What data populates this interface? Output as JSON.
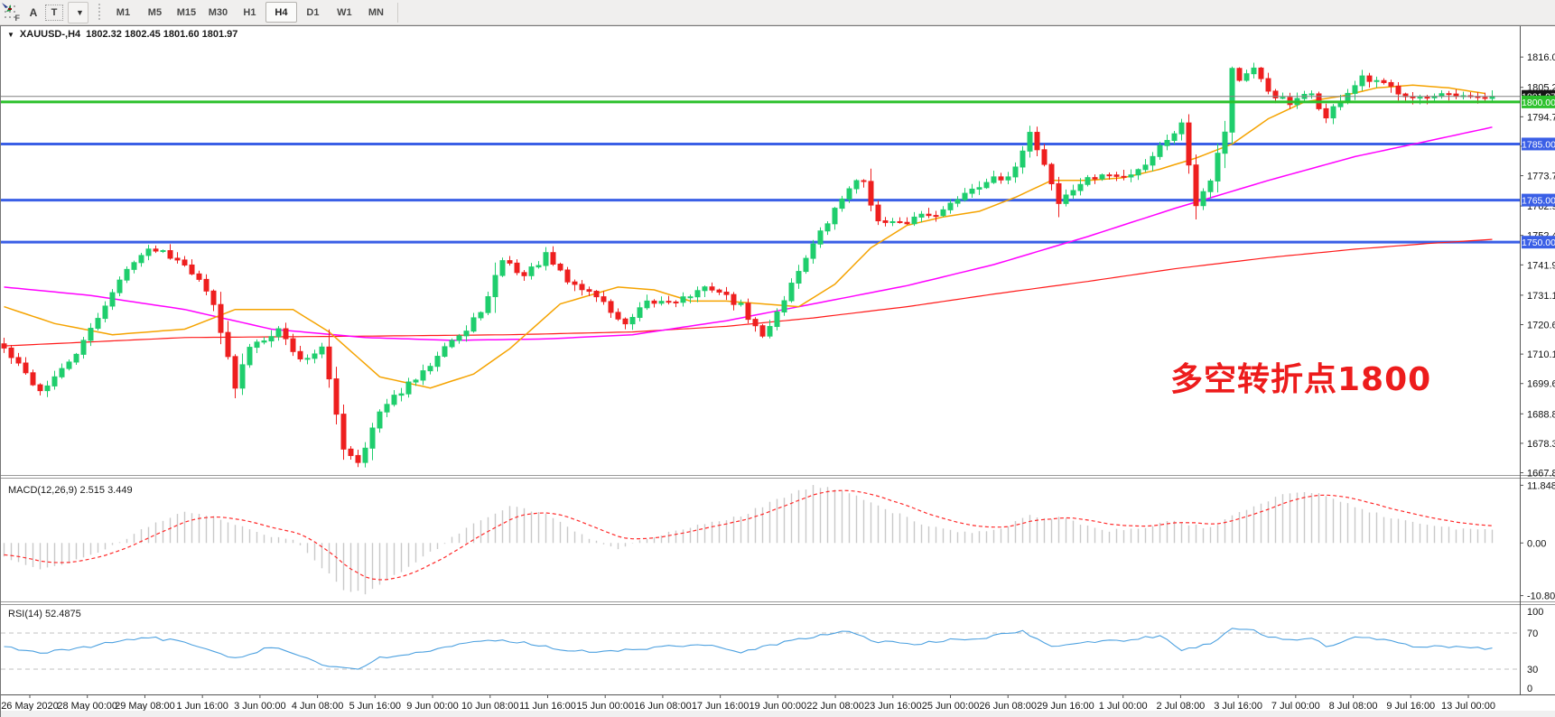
{
  "toolbar": {
    "icon_labels": {
      "f": "F",
      "a": "A",
      "t": "T"
    },
    "timeframes": [
      "M1",
      "M5",
      "M15",
      "M30",
      "H1",
      "H4",
      "D1",
      "W1",
      "MN"
    ],
    "active_timeframe": "H4"
  },
  "chart": {
    "title": {
      "symbol": "XAUUSD-,H4",
      "ohlc": "1802.32 1802.45 1801.60 1801.97"
    },
    "annotation": {
      "text": "多空转折点1800",
      "color": "#ED1C1C"
    },
    "macd": {
      "label": "MACD(12,26,9)",
      "values": "2.515 3.449"
    },
    "rsi": {
      "label": "RSI(14)",
      "value": "52.4875"
    }
  },
  "chart_data": {
    "type": "candlestick",
    "symbol": "XAUUSD",
    "timeframe": "H4",
    "bar_count": 207,
    "ylim": [
      1667.0,
      1827.0
    ],
    "price_axis_ticks": [
      1816.0,
      1805.2,
      1794.7,
      1784.2,
      1773.7,
      1762.9,
      1752.4,
      1741.9,
      1731.1,
      1720.6,
      1710.1,
      1699.6,
      1688.8,
      1678.3,
      1667.8
    ],
    "candle_colors": {
      "bull": "#1FCE6D",
      "bear": "#EE1F1F"
    },
    "close_anchors": [
      [
        0,
        1712
      ],
      [
        3,
        1703
      ],
      [
        5,
        1697
      ],
      [
        8,
        1704
      ],
      [
        11,
        1714
      ],
      [
        14,
        1728
      ],
      [
        18,
        1744
      ],
      [
        21,
        1748
      ],
      [
        25,
        1743
      ],
      [
        29,
        1729
      ],
      [
        32,
        1698
      ],
      [
        34,
        1713
      ],
      [
        38,
        1719
      ],
      [
        41,
        1708
      ],
      [
        44,
        1712
      ],
      [
        47,
        1677
      ],
      [
        49,
        1672
      ],
      [
        52,
        1689
      ],
      [
        55,
        1697
      ],
      [
        58,
        1703
      ],
      [
        61,
        1714
      ],
      [
        64,
        1718
      ],
      [
        67,
        1730
      ],
      [
        69,
        1744
      ],
      [
        72,
        1738
      ],
      [
        75,
        1745
      ],
      [
        78,
        1736
      ],
      [
        82,
        1731
      ],
      [
        86,
        1720
      ],
      [
        89,
        1728
      ],
      [
        94,
        1730
      ],
      [
        98,
        1734
      ],
      [
        102,
        1727
      ],
      [
        105,
        1716
      ],
      [
        108,
        1730
      ],
      [
        111,
        1745
      ],
      [
        114,
        1757
      ],
      [
        117,
        1770
      ],
      [
        119,
        1772
      ],
      [
        121,
        1757
      ],
      [
        124,
        1756
      ],
      [
        127,
        1760
      ],
      [
        130,
        1761
      ],
      [
        133,
        1768
      ],
      [
        136,
        1772
      ],
      [
        139,
        1772
      ],
      [
        142,
        1789
      ],
      [
        144,
        1778
      ],
      [
        146,
        1764
      ],
      [
        149,
        1771
      ],
      [
        152,
        1774
      ],
      [
        155,
        1773
      ],
      [
        158,
        1778
      ],
      [
        161,
        1787
      ],
      [
        163,
        1792
      ],
      [
        165,
        1764
      ],
      [
        167,
        1773
      ],
      [
        169,
        1790
      ],
      [
        170,
        1812
      ],
      [
        171,
        1808
      ],
      [
        173,
        1811
      ],
      [
        175,
        1804
      ],
      [
        178,
        1799
      ],
      [
        181,
        1803
      ],
      [
        183,
        1794
      ],
      [
        185,
        1801
      ],
      [
        188,
        1808
      ],
      [
        191,
        1806
      ],
      [
        194,
        1803
      ],
      [
        197,
        1801
      ],
      [
        200,
        1802
      ],
      [
        203,
        1801
      ],
      [
        206,
        1801.97
      ]
    ],
    "last_ohlc": {
      "open": 1802.32,
      "high": 1802.45,
      "low": 1801.6,
      "close": 1801.97
    },
    "horizontal_lines": [
      {
        "price": 1785.0,
        "label": "1785.00",
        "color": "#3A5FE6",
        "width": 3
      },
      {
        "price": 1765.0,
        "label": "1765.00",
        "color": "#3A5FE6",
        "width": 3
      },
      {
        "price": 1750.0,
        "label": "1750.00",
        "color": "#3A5FE6",
        "width": 3
      },
      {
        "price": 1800.0,
        "label": "1800.00",
        "color": "#2CC12C",
        "width": 3
      }
    ],
    "current_price": {
      "price": 1801.97,
      "label": "1801.97",
      "line_color": "#808080",
      "box_color": "#151515"
    },
    "moving_averages": [
      {
        "name": "fast-ma",
        "color": "#F5A300",
        "anchors": [
          [
            0,
            1727
          ],
          [
            7,
            1721
          ],
          [
            15,
            1717
          ],
          [
            25,
            1719
          ],
          [
            32,
            1726
          ],
          [
            40,
            1726
          ],
          [
            45,
            1718
          ],
          [
            52,
            1702
          ],
          [
            59,
            1698
          ],
          [
            65,
            1703
          ],
          [
            70,
            1712
          ],
          [
            77,
            1728
          ],
          [
            85,
            1734
          ],
          [
            90,
            1733
          ],
          [
            95,
            1729
          ],
          [
            100,
            1729
          ],
          [
            105,
            1728
          ],
          [
            110,
            1727
          ],
          [
            115,
            1735
          ],
          [
            120,
            1748
          ],
          [
            125,
            1756
          ],
          [
            130,
            1759
          ],
          [
            135,
            1761
          ],
          [
            140,
            1766
          ],
          [
            145,
            1772
          ],
          [
            150,
            1772
          ],
          [
            155,
            1773
          ],
          [
            160,
            1776
          ],
          [
            165,
            1780
          ],
          [
            170,
            1785
          ],
          [
            175,
            1794
          ],
          [
            180,
            1800
          ],
          [
            185,
            1802
          ],
          [
            190,
            1805
          ],
          [
            195,
            1806
          ],
          [
            200,
            1805
          ],
          [
            205,
            1803
          ]
        ]
      },
      {
        "name": "mid-ma",
        "color": "#FF00FF",
        "anchors": [
          [
            0,
            1734
          ],
          [
            12,
            1731
          ],
          [
            25,
            1726
          ],
          [
            37,
            1719
          ],
          [
            50,
            1716
          ],
          [
            62,
            1715
          ],
          [
            75,
            1715.5
          ],
          [
            87,
            1717
          ],
          [
            100,
            1722
          ],
          [
            112,
            1728
          ],
          [
            125,
            1734.5
          ],
          [
            137,
            1742
          ],
          [
            150,
            1752
          ],
          [
            162,
            1762
          ],
          [
            175,
            1772
          ],
          [
            187,
            1780.5
          ],
          [
            197,
            1786
          ],
          [
            206,
            1791
          ]
        ]
      },
      {
        "name": "slow-ma",
        "color": "#FF1A1A",
        "anchors": [
          [
            0,
            1713
          ],
          [
            25,
            1716
          ],
          [
            50,
            1716.5
          ],
          [
            70,
            1717
          ],
          [
            87,
            1718
          ],
          [
            100,
            1720
          ],
          [
            112,
            1723
          ],
          [
            125,
            1727
          ],
          [
            137,
            1731.5
          ],
          [
            150,
            1736
          ],
          [
            162,
            1740.5
          ],
          [
            175,
            1744.5
          ],
          [
            187,
            1747.5
          ],
          [
            197,
            1749.5
          ],
          [
            206,
            1751
          ]
        ]
      }
    ],
    "macd": {
      "ylim": [
        -12.0,
        13.4
      ],
      "axis_ticks": [
        "11.848",
        "0.00",
        "-10.808"
      ],
      "axis_values": [
        11.848,
        0,
        -10.808
      ],
      "histogram_color": "#C9C9C9",
      "signal_color": "#FF2A2A",
      "anchors": [
        [
          0,
          -3
        ],
        [
          5,
          -5.5
        ],
        [
          10,
          -3.5
        ],
        [
          15,
          -0.5
        ],
        [
          20,
          3.5
        ],
        [
          25,
          6.5
        ],
        [
          30,
          5
        ],
        [
          35,
          2
        ],
        [
          40,
          0.5
        ],
        [
          42,
          -2
        ],
        [
          47,
          -9.5
        ],
        [
          50,
          -10.3
        ],
        [
          55,
          -6
        ],
        [
          60,
          -1
        ],
        [
          65,
          4
        ],
        [
          70,
          7.5
        ],
        [
          75,
          6
        ],
        [
          80,
          1.5
        ],
        [
          85,
          -1
        ],
        [
          87,
          0
        ],
        [
          92,
          2
        ],
        [
          97,
          4
        ],
        [
          102,
          5.5
        ],
        [
          107,
          9
        ],
        [
          112,
          11.7
        ],
        [
          117,
          10.5
        ],
        [
          122,
          7
        ],
        [
          127,
          4
        ],
        [
          132,
          2
        ],
        [
          137,
          2.5
        ],
        [
          142,
          5.5
        ],
        [
          147,
          5
        ],
        [
          152,
          2.5
        ],
        [
          157,
          3
        ],
        [
          162,
          4.5
        ],
        [
          167,
          3
        ],
        [
          172,
          7
        ],
        [
          177,
          10
        ],
        [
          181,
          10.5
        ],
        [
          186,
          8
        ],
        [
          191,
          5.5
        ],
        [
          196,
          4
        ],
        [
          201,
          3
        ],
        [
          206,
          2.515
        ]
      ]
    },
    "rsi": {
      "ylim": [
        2,
        102
      ],
      "axis_ticks": [
        "100",
        "70",
        "30",
        "0"
      ],
      "levels": [
        70,
        30
      ],
      "color": "#4DA1E0",
      "anchors": [
        [
          0,
          55
        ],
        [
          5,
          48
        ],
        [
          10,
          52
        ],
        [
          15,
          60
        ],
        [
          20,
          65
        ],
        [
          25,
          60
        ],
        [
          30,
          48
        ],
        [
          32,
          42
        ],
        [
          37,
          55
        ],
        [
          41,
          45
        ],
        [
          45,
          32
        ],
        [
          49,
          30
        ],
        [
          52,
          42
        ],
        [
          57,
          48
        ],
        [
          62,
          55
        ],
        [
          67,
          62
        ],
        [
          72,
          60
        ],
        [
          77,
          52
        ],
        [
          82,
          48
        ],
        [
          87,
          52
        ],
        [
          92,
          55
        ],
        [
          97,
          57
        ],
        [
          102,
          48
        ],
        [
          107,
          58
        ],
        [
          112,
          66
        ],
        [
          117,
          72
        ],
        [
          121,
          60
        ],
        [
          126,
          58
        ],
        [
          131,
          62
        ],
        [
          136,
          65
        ],
        [
          141,
          72
        ],
        [
          145,
          55
        ],
        [
          150,
          60
        ],
        [
          155,
          62
        ],
        [
          160,
          67
        ],
        [
          163,
          52
        ],
        [
          167,
          58
        ],
        [
          170,
          75
        ],
        [
          173,
          72
        ],
        [
          177,
          62
        ],
        [
          181,
          65
        ],
        [
          183,
          55
        ],
        [
          187,
          65
        ],
        [
          191,
          62
        ],
        [
          195,
          55
        ],
        [
          198,
          56
        ],
        [
          202,
          53
        ],
        [
          206,
          52.5
        ]
      ]
    },
    "time_axis_labels": [
      "26 May 2020",
      "28 May 00:00",
      "29 May 08:00",
      "1 Jun 16:00",
      "3 Jun 00:00",
      "4 Jun 08:00",
      "5 Jun 16:00",
      "9 Jun 00:00",
      "10 Jun 08:00",
      "11 Jun 16:00",
      "15 Jun 00:00",
      "16 Jun 08:00",
      "17 Jun 16:00",
      "19 Jun 00:00",
      "22 Jun 08:00",
      "23 Jun 16:00",
      "25 Jun 00:00",
      "26 Jun 08:00",
      "29 Jun 16:00",
      "1 Jul 00:00",
      "2 Jul 08:00",
      "3 Jul 16:00",
      "7 Jul 00:00",
      "8 Jul 08:00",
      "9 Jul 16:00",
      "13 Jul 00:00"
    ]
  }
}
